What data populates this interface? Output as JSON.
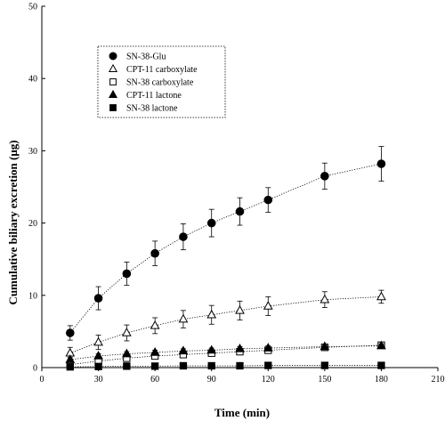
{
  "chart_data": {
    "type": "line",
    "xlabel": "Time (min)",
    "ylabel": "Cumulative biliary excretion (μg)",
    "xlim": [
      0,
      210
    ],
    "ylim": [
      0,
      50
    ],
    "xticks": [
      "0",
      "30",
      "60",
      "90",
      "120",
      "150",
      "180",
      "210"
    ],
    "yticks": [
      "0",
      "10",
      "20",
      "30",
      "40",
      "50"
    ],
    "legend": "top-left",
    "grid": false,
    "x": [
      15,
      30,
      45,
      60,
      75,
      90,
      105,
      120,
      150,
      180
    ],
    "series": [
      {
        "name": "SN-38-Glu",
        "marker": "filled-circle",
        "values": [
          4.8,
          9.6,
          13.0,
          15.8,
          18.1,
          20.0,
          21.6,
          23.2,
          26.5,
          28.2
        ],
        "errors": [
          1.0,
          1.6,
          1.6,
          1.7,
          1.8,
          1.9,
          1.9,
          1.7,
          1.8,
          2.4
        ]
      },
      {
        "name": "CPT-11 carboxylate",
        "marker": "open-triangle",
        "values": [
          2.0,
          3.5,
          4.8,
          5.8,
          6.7,
          7.3,
          7.9,
          8.5,
          9.4,
          9.8
        ],
        "errors": [
          0.8,
          1.0,
          1.1,
          1.1,
          1.2,
          1.3,
          1.3,
          1.3,
          1.1,
          0.9
        ]
      },
      {
        "name": "SN-38 carboxylate",
        "marker": "open-square",
        "values": [
          0.4,
          0.9,
          1.3,
          1.6,
          1.8,
          2.0,
          2.2,
          2.4,
          2.8,
          3.1
        ],
        "errors": [
          0.3,
          0.3,
          0.4,
          0.4,
          0.4,
          0.4,
          0.4,
          0.4,
          0.4,
          0.4
        ]
      },
      {
        "name": "CPT-11 lactone",
        "marker": "filled-triangle",
        "values": [
          1.1,
          1.6,
          1.9,
          2.1,
          2.3,
          2.4,
          2.6,
          2.7,
          2.9,
          3.0
        ],
        "errors": [
          0.3,
          0.3,
          0.3,
          0.3,
          0.3,
          0.3,
          0.3,
          0.3,
          0.3,
          0.3
        ]
      },
      {
        "name": "SN-38 lactone",
        "marker": "filled-square",
        "values": [
          0.1,
          0.15,
          0.2,
          0.2,
          0.25,
          0.25,
          0.25,
          0.3,
          0.3,
          0.3
        ],
        "errors": [
          0.05,
          0.05,
          0.05,
          0.05,
          0.05,
          0.05,
          0.05,
          0.05,
          0.05,
          0.05
        ]
      }
    ]
  }
}
